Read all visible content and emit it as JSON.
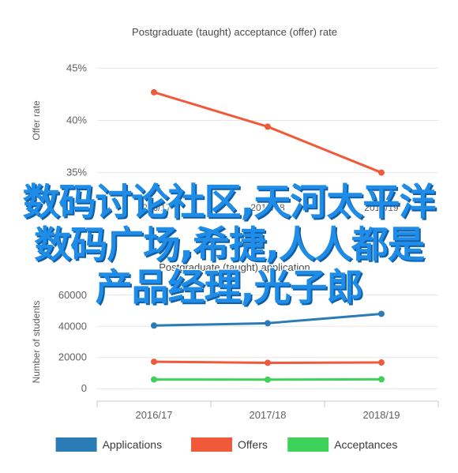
{
  "chart_data": [
    {
      "type": "line",
      "title": "Postgraduate (taught) acceptance (offer) rate",
      "ylabel": "Offer rate",
      "xlabel": "",
      "categories": [
        "2016/17",
        "2017/18",
        "2018/19"
      ],
      "series": [
        {
          "name": "Offer rate",
          "values": [
            42.7,
            39.4,
            35.0
          ],
          "color": "#f05a3a"
        }
      ],
      "ylim": [
        33,
        47
      ],
      "yticks": [
        "35%",
        "40%",
        "45%"
      ],
      "ytick_values": [
        35,
        40,
        45
      ],
      "grid": true
    },
    {
      "type": "line",
      "title": "Postgraduate (taught) application",
      "ylabel": "Number of students",
      "xlabel": "",
      "categories": [
        "2016/17",
        "2017/18",
        "2018/19"
      ],
      "series": [
        {
          "name": "Applications",
          "values": [
            40500,
            42000,
            48000
          ],
          "color": "#2b7cb6"
        },
        {
          "name": "Offers",
          "values": [
            17300,
            16600,
            16800
          ],
          "color": "#f05a3a"
        },
        {
          "name": "Acceptances",
          "values": [
            5900,
            5800,
            6000
          ],
          "color": "#3fd25a"
        }
      ],
      "ylim": [
        -8000,
        68000
      ],
      "yticks": [
        "0",
        "20000",
        "40000",
        "60000"
      ],
      "ytick_values": [
        0,
        20000,
        40000,
        60000
      ],
      "grid": true,
      "legend": "bottom"
    }
  ],
  "overlay": {
    "lines": [
      "数码讨论社区,天河太平洋",
      "数码广场,希捷,人人都是",
      "产品经理,光子郎"
    ]
  },
  "colors": {
    "grid": "#e6e6e6",
    "axis_text": "#606060",
    "title": "#4a4a4a"
  }
}
